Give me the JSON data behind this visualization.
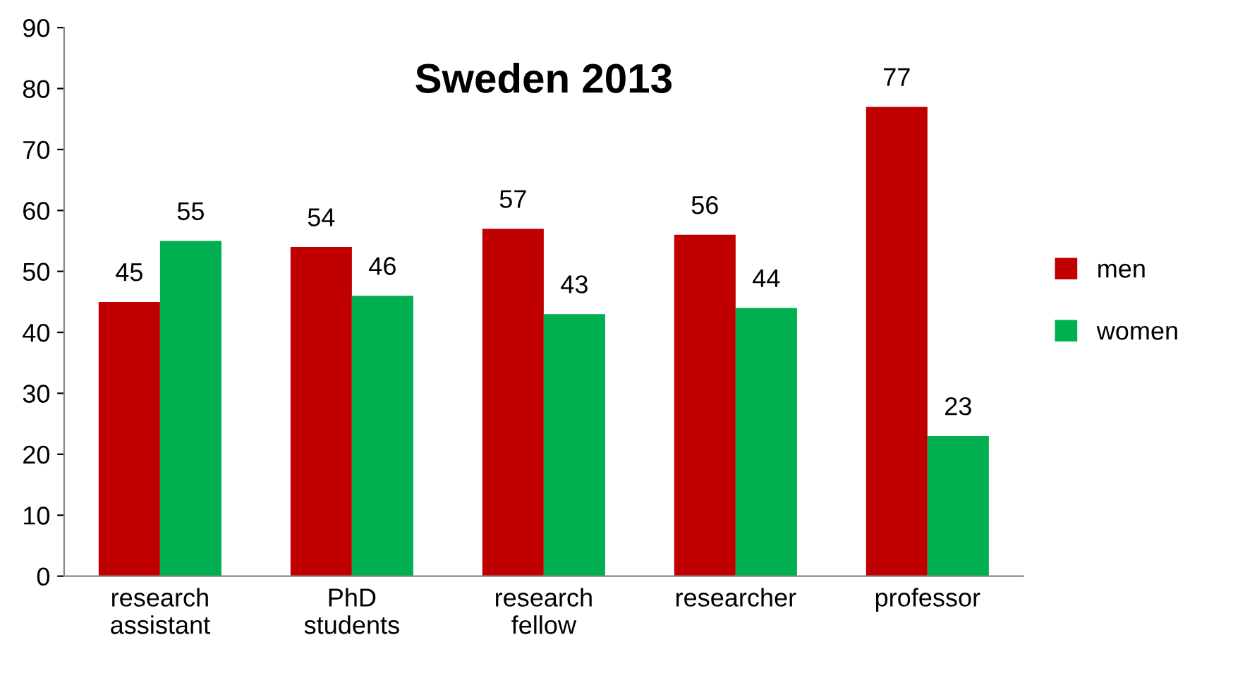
{
  "chart_data": {
    "type": "bar",
    "title": "Sweden 2013",
    "categories": [
      "research assistant",
      "PhD students",
      "research fellow",
      "researcher",
      "professor"
    ],
    "series": [
      {
        "name": "men",
        "color": "#c00000",
        "values": [
          45,
          54,
          57,
          56,
          77
        ]
      },
      {
        "name": "women",
        "color": "#00b050",
        "values": [
          55,
          46,
          43,
          44,
          23
        ]
      }
    ],
    "ylim": [
      0,
      90
    ],
    "yticks": [
      0,
      10,
      20,
      30,
      40,
      50,
      60,
      70,
      80,
      90
    ],
    "data_labels": true,
    "grid": false,
    "legend": "right"
  }
}
